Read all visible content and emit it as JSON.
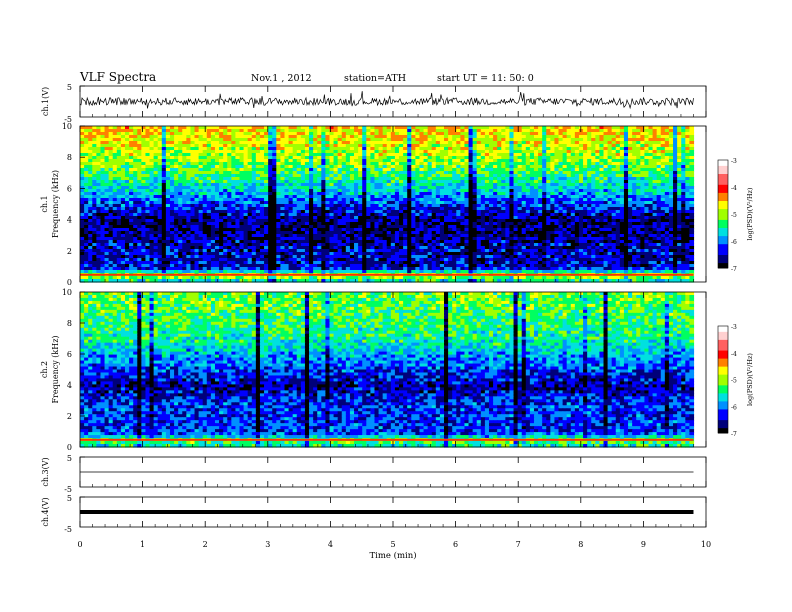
{
  "header": {
    "title": "VLF  Spectra",
    "date": "Nov.1  , 2012",
    "station": "station=ATH",
    "start": "start  UT  =   11: 50: 0"
  },
  "colors": {
    "colormap": [
      "#000000",
      "#00007a",
      "#0000ff",
      "#0090ff",
      "#00e0e0",
      "#00ff60",
      "#a0ff00",
      "#ffff00",
      "#ff8000",
      "#ff0000",
      "#ff6060",
      "#ffd0d0",
      "#ffffff"
    ]
  },
  "chart_data": [
    {
      "type": "line",
      "name": "ch1",
      "ylabel": "ch.1(V)",
      "ylim": [
        -5,
        5
      ],
      "y_ticks": [
        "5",
        "-5"
      ],
      "x": [
        0,
        9.8
      ],
      "y": [
        0.0,
        0.0
      ],
      "note_visible": "noisy trace oscillating roughly between -1.5 and +1.5 V"
    },
    {
      "type": "heatmap",
      "name": "ch1-spectrogram",
      "ylabel": "ch.1\nFrequency  (kHz)",
      "ylim": [
        0,
        10
      ],
      "y_ticks": [
        "0",
        "2",
        "4",
        "6",
        "8",
        "10"
      ],
      "xlim": [
        0,
        9.8
      ],
      "colorbar": {
        "label": "log(PSD)(V²/Hz)",
        "ticks": [
          "-3",
          "-4",
          "-5",
          "-6",
          "-7"
        ],
        "range": [
          -7,
          -3
        ]
      },
      "profile": [
        {
          "f": 0.2,
          "level": -5.0
        },
        {
          "f": 0.5,
          "level": -4.0
        },
        {
          "f": 1.0,
          "level": -6.3
        },
        {
          "f": 2.0,
          "level": -6.3
        },
        {
          "f": 3.0,
          "level": -6.5
        },
        {
          "f": 4.0,
          "level": -6.6
        },
        {
          "f": 5.0,
          "level": -6.0
        },
        {
          "f": 6.0,
          "level": -5.3
        },
        {
          "f": 7.0,
          "level": -4.8
        },
        {
          "f": 8.0,
          "level": -4.3
        },
        {
          "f": 9.0,
          "level": -4.0
        },
        {
          "f": 10.0,
          "level": -3.8
        }
      ]
    },
    {
      "type": "heatmap",
      "name": "ch2-spectrogram",
      "ylabel": "ch.2\nFrequency  (kHz)",
      "ylim": [
        0,
        10
      ],
      "y_ticks": [
        "0",
        "2",
        "4",
        "6",
        "8",
        "10"
      ],
      "xlim": [
        0,
        9.8
      ],
      "colorbar": {
        "label": "log(PSD)(V²/Hz)",
        "ticks": [
          "-3",
          "-4",
          "-5",
          "-6",
          "-7"
        ],
        "range": [
          -7,
          -3
        ]
      },
      "profile": [
        {
          "f": 0.2,
          "level": -5.0
        },
        {
          "f": 0.5,
          "level": -4.5
        },
        {
          "f": 1.0,
          "level": -6.0
        },
        {
          "f": 2.0,
          "level": -6.0
        },
        {
          "f": 3.0,
          "level": -6.0
        },
        {
          "f": 4.0,
          "level": -6.5
        },
        {
          "f": 5.0,
          "level": -6.0
        },
        {
          "f": 6.0,
          "level": -5.5
        },
        {
          "f": 7.0,
          "level": -5.0
        },
        {
          "f": 8.0,
          "level": -4.8
        },
        {
          "f": 9.0,
          "level": -4.6
        },
        {
          "f": 10.0,
          "level": -4.5
        }
      ]
    },
    {
      "type": "line",
      "name": "ch3",
      "ylabel": "ch.3(V)",
      "ylim": [
        -5,
        5
      ],
      "y_ticks": [
        "5",
        "-5"
      ],
      "x": [
        0,
        9.8
      ],
      "y": [
        0.0,
        0.0
      ]
    },
    {
      "type": "line",
      "name": "ch4",
      "ylabel": "ch.4(V)",
      "ylim": [
        -5,
        5
      ],
      "y_ticks": [
        "5",
        "-5"
      ],
      "x": [
        0,
        9.8
      ],
      "y": [
        0.0,
        0.0
      ]
    }
  ],
  "xaxis": {
    "label": "Time  (min)",
    "ticks": [
      "0",
      "1",
      "2",
      "3",
      "4",
      "5",
      "6",
      "7",
      "8",
      "9",
      "10"
    ],
    "xlim": [
      0,
      10
    ]
  }
}
